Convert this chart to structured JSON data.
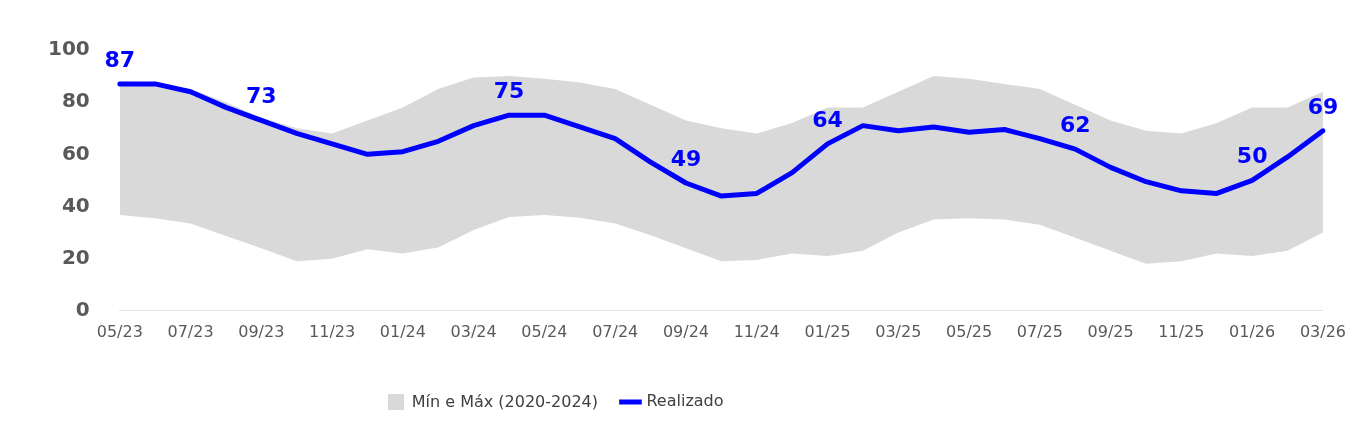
{
  "chart_data": {
    "type": "line",
    "categories": [
      "05/23",
      null,
      "07/23",
      null,
      "09/23",
      null,
      "11/23",
      null,
      "01/24",
      null,
      "03/24",
      null,
      "05/24",
      null,
      "07/24",
      null,
      "09/24",
      null,
      "11/24",
      null,
      "01/25",
      null,
      "03/25",
      null,
      "05/25",
      null,
      "07/25",
      null,
      "09/25",
      null,
      "11/25",
      null,
      "01/26",
      null,
      "03/26"
    ],
    "series": [
      {
        "name": "Realizado",
        "color": "#0000ff",
        "values": [
          87,
          87,
          84,
          78,
          73,
          68,
          64,
          60,
          61,
          65,
          71,
          75,
          75,
          70.5,
          66,
          57,
          49,
          44,
          45,
          53,
          64,
          71,
          69,
          70.5,
          68.5,
          69.5,
          66,
          62,
          55,
          49.5,
          46,
          45,
          50,
          59,
          69
        ],
        "value_labels": [
          "87",
          null,
          null,
          null,
          "73",
          null,
          null,
          null,
          null,
          null,
          null,
          "75",
          null,
          null,
          null,
          null,
          "49",
          null,
          null,
          null,
          "64",
          null,
          null,
          null,
          null,
          null,
          null,
          "62",
          null,
          null,
          null,
          null,
          "50",
          null,
          "69"
        ],
        "lower": [
          36.7,
          35.5,
          33.5,
          28.7,
          24,
          19,
          20,
          23.6,
          22,
          24.3,
          31,
          36,
          36.7,
          35.7,
          33.5,
          29,
          24,
          19,
          19.5,
          22,
          21,
          23,
          30,
          35,
          35.5,
          35,
          33,
          28,
          23,
          18,
          19,
          22,
          21,
          23,
          30
        ],
        "upper": [
          88,
          87,
          85,
          80,
          74,
          70,
          68,
          73,
          78,
          85,
          89.5,
          90,
          89,
          87.5,
          85,
          79,
          73,
          70,
          68,
          72,
          78,
          78,
          84,
          90,
          89,
          87,
          85,
          79,
          73,
          69,
          68,
          72,
          78,
          78,
          84
        ]
      }
    ],
    "annotations": [
      "Mín e Máx (2020-2024)"
    ],
    "ylim": [
      0,
      100
    ],
    "yticks": [
      0,
      20,
      40,
      60,
      80,
      100
    ],
    "grid": false,
    "legend": "bottom",
    "marker": "none",
    "line_style": "solid"
  }
}
